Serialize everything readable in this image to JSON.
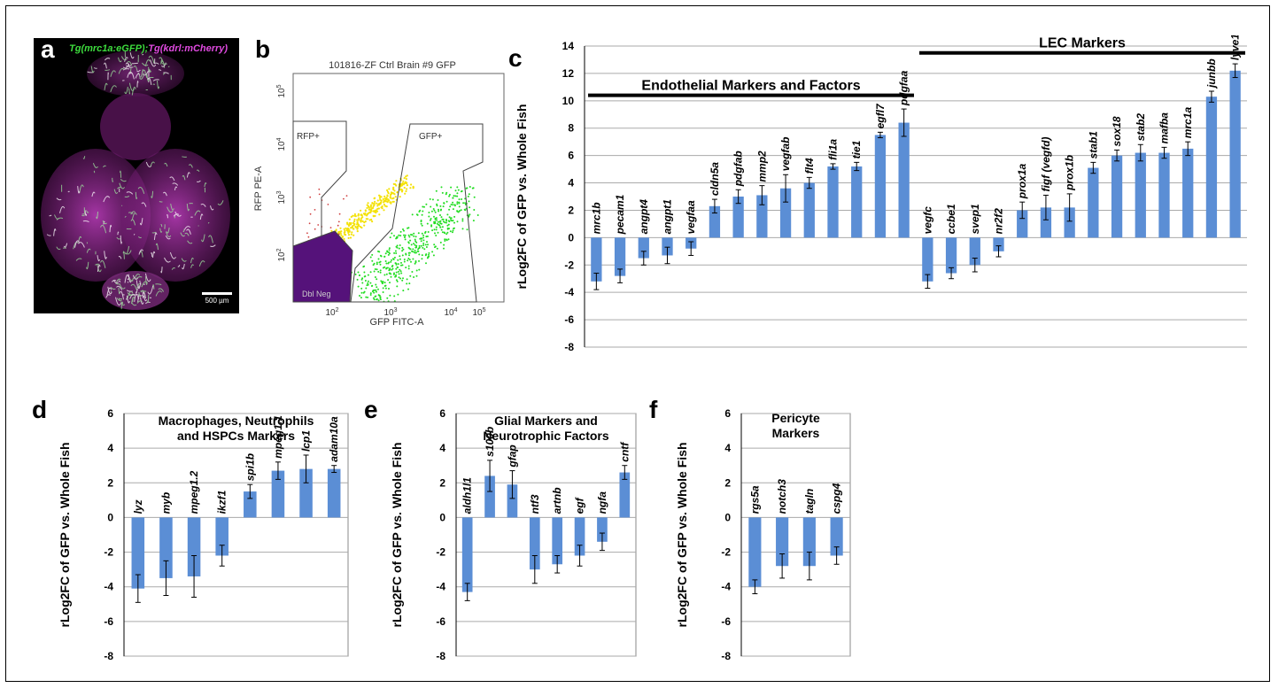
{
  "panels": {
    "a": "a",
    "b": "b",
    "c": "c",
    "d": "d",
    "e": "e",
    "f": "f"
  },
  "micrograph": {
    "title_green": "Tg(mrc1a:eGFP)",
    "title_sep": ";",
    "title_magenta": "Tg(kdrl:mCherry)",
    "scale": "500 µm",
    "colors": {
      "green": "#3ddc3d",
      "magenta": "#e04ae0"
    }
  },
  "facs": {
    "title": "101816-ZF Ctrl Brain #9 GFP",
    "ylabel": "RFP PE-A",
    "xlabel": "GFP FITC-A",
    "gates": [
      "RFP+",
      "GFP+",
      "Dbl Neg"
    ],
    "yticks": [
      "10^5",
      "10^4",
      "10^3",
      "10^2"
    ],
    "xticks": [
      "10^2",
      "10^3",
      "10^4",
      "10^5"
    ],
    "colors": {
      "green": "#22dd22",
      "yellow": "#f4e20a",
      "neg": "#55127a",
      "red": "#d04040"
    }
  },
  "chart_data": [
    {
      "id": "c",
      "type": "bar",
      "ylabel": "rLog2FC of GFP vs. Whole Fish",
      "ylim": [
        -8,
        14
      ],
      "yticks": [
        -8,
        -6,
        -4,
        -2,
        0,
        2,
        4,
        6,
        8,
        10,
        12,
        14
      ],
      "grid": true,
      "bar_color": "#5b8ed5",
      "categories": [
        "mrc1b",
        "pecam1",
        "angpt4",
        "angpt1",
        "vegfaa",
        "cldn5a",
        "pdgfab",
        "mmp2",
        "vegfab",
        "flt4",
        "fli1a",
        "tie1",
        "egfl7",
        "pdgfaa",
        "vegfc",
        "ccbe1",
        "svep1",
        "nr2f2",
        "prox1a",
        "figf (vegfd)",
        "prox1b",
        "stab1",
        "sox18",
        "stab2",
        "mafba",
        "mrc1a",
        "junbb",
        "lyve1b"
      ],
      "values": [
        -3.2,
        -2.8,
        -1.5,
        -1.3,
        -0.8,
        2.3,
        3.0,
        3.1,
        3.6,
        4.0,
        5.2,
        5.2,
        7.5,
        8.4,
        -3.2,
        -2.6,
        -2.0,
        -1.0,
        2.0,
        2.2,
        2.2,
        5.1,
        6.0,
        6.2,
        6.2,
        6.5,
        10.3,
        12.2
      ],
      "errors": [
        0.6,
        0.5,
        0.5,
        0.6,
        0.5,
        0.5,
        0.5,
        0.7,
        1.0,
        0.4,
        0.2,
        0.3,
        0.2,
        1.0,
        0.5,
        0.4,
        0.5,
        0.4,
        0.6,
        0.9,
        1.0,
        0.4,
        0.4,
        0.6,
        0.4,
        0.5,
        0.4,
        0.5
      ],
      "groups": [
        {
          "label": "Endothelial Markers and Factors",
          "from": 0,
          "to": 13
        },
        {
          "label": "LEC Markers",
          "from": 14,
          "to": 27
        }
      ]
    },
    {
      "id": "d",
      "type": "bar",
      "title": "Macrophages, Neutrophils and HSPCs Markers",
      "title_lines": [
        "Macrophages, Neutrophils",
        "and HSPCs Markers"
      ],
      "ylabel": "rLog2FC of GFP vs. Whole Fish",
      "ylim": [
        -8,
        6
      ],
      "yticks": [
        -8,
        -6,
        -4,
        -2,
        0,
        2,
        4,
        6
      ],
      "grid": true,
      "bar_color": "#5b8ed5",
      "categories": [
        "lyz",
        "myb",
        "mpeg1.2",
        "ikzf1",
        "spi1b",
        "mpeg1.1",
        "lcp1",
        "adam10a"
      ],
      "values": [
        -4.1,
        -3.5,
        -3.4,
        -2.2,
        1.5,
        2.7,
        2.8,
        2.8
      ],
      "errors": [
        0.8,
        1.0,
        1.2,
        0.6,
        0.4,
        0.5,
        0.8,
        0.2
      ]
    },
    {
      "id": "e",
      "type": "bar",
      "title": "Glial Markers and Neurotrophic Factors",
      "title_lines": [
        "Glial Markers and",
        "Neurotrophic Factors"
      ],
      "ylabel": "rLog2FC of GFP vs. Whole Fish",
      "ylim": [
        -8,
        6
      ],
      "yticks": [
        -8,
        -6,
        -4,
        -2,
        0,
        2,
        4,
        6
      ],
      "grid": true,
      "bar_color": "#5b8ed5",
      "categories": [
        "aldh1l1",
        "s100b",
        "gfap",
        "ntf3",
        "artnb",
        "egf",
        "ngfa",
        "cntf"
      ],
      "values": [
        -4.3,
        2.4,
        1.9,
        -3.0,
        -2.7,
        -2.2,
        -1.4,
        2.6
      ],
      "errors": [
        0.5,
        0.9,
        0.8,
        0.8,
        0.5,
        0.6,
        0.5,
        0.4
      ]
    },
    {
      "id": "f",
      "type": "bar",
      "title": "Pericyte Markers",
      "title_lines": [
        "Pericyte",
        "Markers"
      ],
      "ylabel": "rLog2FC of GFP vs. Whole Fish",
      "ylim": [
        -8,
        6
      ],
      "yticks": [
        -8,
        -6,
        -4,
        -2,
        0,
        2,
        4,
        6
      ],
      "grid": true,
      "bar_color": "#5b8ed5",
      "categories": [
        "rgs5a",
        "notch3",
        "tagln",
        "cspg4"
      ],
      "values": [
        -4.0,
        -2.8,
        -2.8,
        -2.2
      ],
      "errors": [
        0.4,
        0.7,
        0.8,
        0.5
      ]
    }
  ]
}
